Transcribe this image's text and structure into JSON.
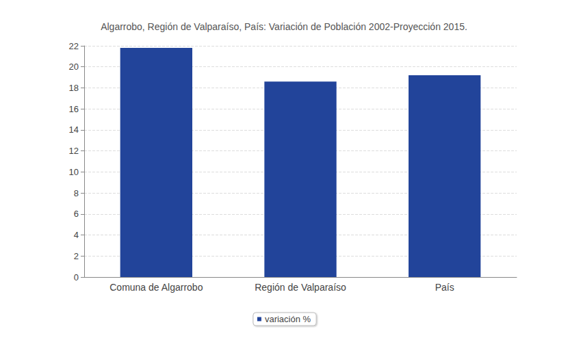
{
  "chart_data": {
    "type": "bar",
    "title": "Algarrobo, Región de Valparaíso, País: Variación de Población 2002-Proyección 2015.",
    "categories": [
      "Comuna de Algarrobo",
      "Región de Valparaíso",
      "País"
    ],
    "series": [
      {
        "name": "variación %",
        "color": "#22449a",
        "values": [
          21.8,
          18.6,
          19.2
        ]
      }
    ],
    "ylim": [
      0,
      22
    ],
    "yticks": [
      0,
      2,
      4,
      6,
      8,
      10,
      12,
      14,
      16,
      18,
      20,
      22
    ],
    "grid": true,
    "legend": "bottom"
  }
}
